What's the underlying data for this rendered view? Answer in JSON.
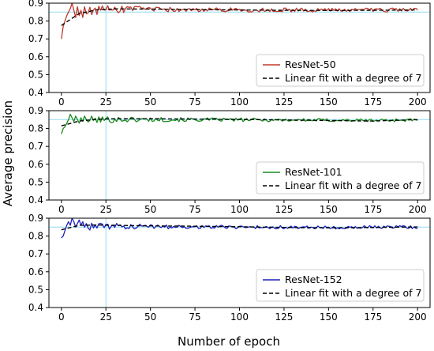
{
  "figure": {
    "xlabel": "Number of epoch",
    "ylabel": "Average precision",
    "reference_line_color": "#8fdcf0"
  },
  "chart_data": [
    {
      "type": "line",
      "xlim": [
        -7,
        207
      ],
      "ylim": [
        0.4,
        0.9
      ],
      "xticks": [
        0,
        25,
        50,
        75,
        100,
        125,
        150,
        175,
        200
      ],
      "yticks": [
        0.4,
        0.5,
        0.6,
        0.7,
        0.8,
        0.9
      ],
      "grid": false,
      "legend_position": "lower-right",
      "reference_lines": {
        "x": 25,
        "y": 0.85
      },
      "series": [
        {
          "name": "ResNet-50",
          "style": "solid",
          "color": "#c0392b",
          "seed": 50,
          "final_mean": 0.862,
          "noise": 0.011,
          "points": [
            [
              0,
              0.7
            ],
            [
              1,
              0.77
            ],
            [
              2,
              0.8
            ],
            [
              3,
              0.83
            ],
            [
              4,
              0.85
            ],
            [
              5,
              0.87
            ],
            [
              6,
              0.9
            ],
            [
              7,
              0.86
            ],
            [
              8,
              0.82
            ],
            [
              9,
              0.88
            ],
            [
              10,
              0.83
            ],
            [
              11,
              0.86
            ],
            [
              12,
              0.82
            ],
            [
              13,
              0.88
            ],
            [
              14,
              0.84
            ]
          ]
        },
        {
          "name": "Linear fit with a degree of 7",
          "style": "dashed",
          "color": "#000000",
          "fit": [
            [
              0,
              0.775
            ],
            [
              10,
              0.842
            ],
            [
              20,
              0.863
            ],
            [
              30,
              0.868
            ],
            [
              50,
              0.867
            ],
            [
              75,
              0.864
            ],
            [
              100,
              0.862
            ],
            [
              125,
              0.86
            ],
            [
              150,
              0.859
            ],
            [
              175,
              0.86
            ],
            [
              200,
              0.862
            ]
          ]
        }
      ]
    },
    {
      "type": "line",
      "xlim": [
        -7,
        207
      ],
      "ylim": [
        0.4,
        0.9
      ],
      "xticks": [
        0,
        25,
        50,
        75,
        100,
        125,
        150,
        175,
        200
      ],
      "yticks": [
        0.4,
        0.5,
        0.6,
        0.7,
        0.8,
        0.9
      ],
      "grid": false,
      "legend_position": "lower-right",
      "reference_lines": {
        "x": 25,
        "y": 0.85
      },
      "series": [
        {
          "name": "ResNet-101",
          "style": "solid",
          "color": "#1a8a1a",
          "seed": 101,
          "final_mean": 0.848,
          "noise": 0.009,
          "points": [
            [
              0,
              0.77
            ],
            [
              1,
              0.8
            ],
            [
              2,
              0.81
            ],
            [
              3,
              0.83
            ],
            [
              4,
              0.85
            ],
            [
              5,
              0.88
            ],
            [
              6,
              0.86
            ],
            [
              7,
              0.84
            ],
            [
              8,
              0.87
            ],
            [
              9,
              0.85
            ],
            [
              10,
              0.83
            ],
            [
              11,
              0.86
            ],
            [
              12,
              0.84
            ],
            [
              13,
              0.87
            ],
            [
              14,
              0.85
            ]
          ]
        },
        {
          "name": "Linear fit with a degree of 7",
          "style": "dashed",
          "color": "#000000",
          "fit": [
            [
              0,
              0.815
            ],
            [
              10,
              0.842
            ],
            [
              20,
              0.852
            ],
            [
              30,
              0.855
            ],
            [
              50,
              0.855
            ],
            [
              75,
              0.853
            ],
            [
              100,
              0.851
            ],
            [
              125,
              0.848
            ],
            [
              150,
              0.845
            ],
            [
              175,
              0.842
            ],
            [
              200,
              0.85
            ]
          ]
        }
      ]
    },
    {
      "type": "line",
      "xlim": [
        -7,
        207
      ],
      "ylim": [
        0.4,
        0.9
      ],
      "xticks": [
        0,
        25,
        50,
        75,
        100,
        125,
        150,
        175,
        200
      ],
      "yticks": [
        0.4,
        0.5,
        0.6,
        0.7,
        0.8,
        0.9
      ],
      "grid": false,
      "legend_position": "lower-right",
      "reference_lines": {
        "x": 25,
        "y": 0.85
      },
      "series": [
        {
          "name": "ResNet-152",
          "style": "solid",
          "color": "#1f1fbf",
          "seed": 152,
          "final_mean": 0.85,
          "noise": 0.009,
          "points": [
            [
              0,
              0.79
            ],
            [
              1,
              0.8
            ],
            [
              2,
              0.83
            ],
            [
              3,
              0.86
            ],
            [
              4,
              0.88
            ],
            [
              5,
              0.86
            ],
            [
              6,
              0.9
            ],
            [
              7,
              0.88
            ],
            [
              8,
              0.85
            ],
            [
              9,
              0.87
            ],
            [
              10,
              0.89
            ],
            [
              11,
              0.86
            ],
            [
              12,
              0.88
            ],
            [
              13,
              0.85
            ],
            [
              14,
              0.87
            ]
          ]
        },
        {
          "name": "Linear fit with a degree of 7",
          "style": "dashed",
          "color": "#000000",
          "fit": [
            [
              0,
              0.835
            ],
            [
              10,
              0.86
            ],
            [
              20,
              0.862
            ],
            [
              30,
              0.86
            ],
            [
              50,
              0.857
            ],
            [
              75,
              0.855
            ],
            [
              100,
              0.852
            ],
            [
              125,
              0.848
            ],
            [
              150,
              0.846
            ],
            [
              175,
              0.848
            ],
            [
              200,
              0.851
            ]
          ]
        }
      ]
    }
  ]
}
